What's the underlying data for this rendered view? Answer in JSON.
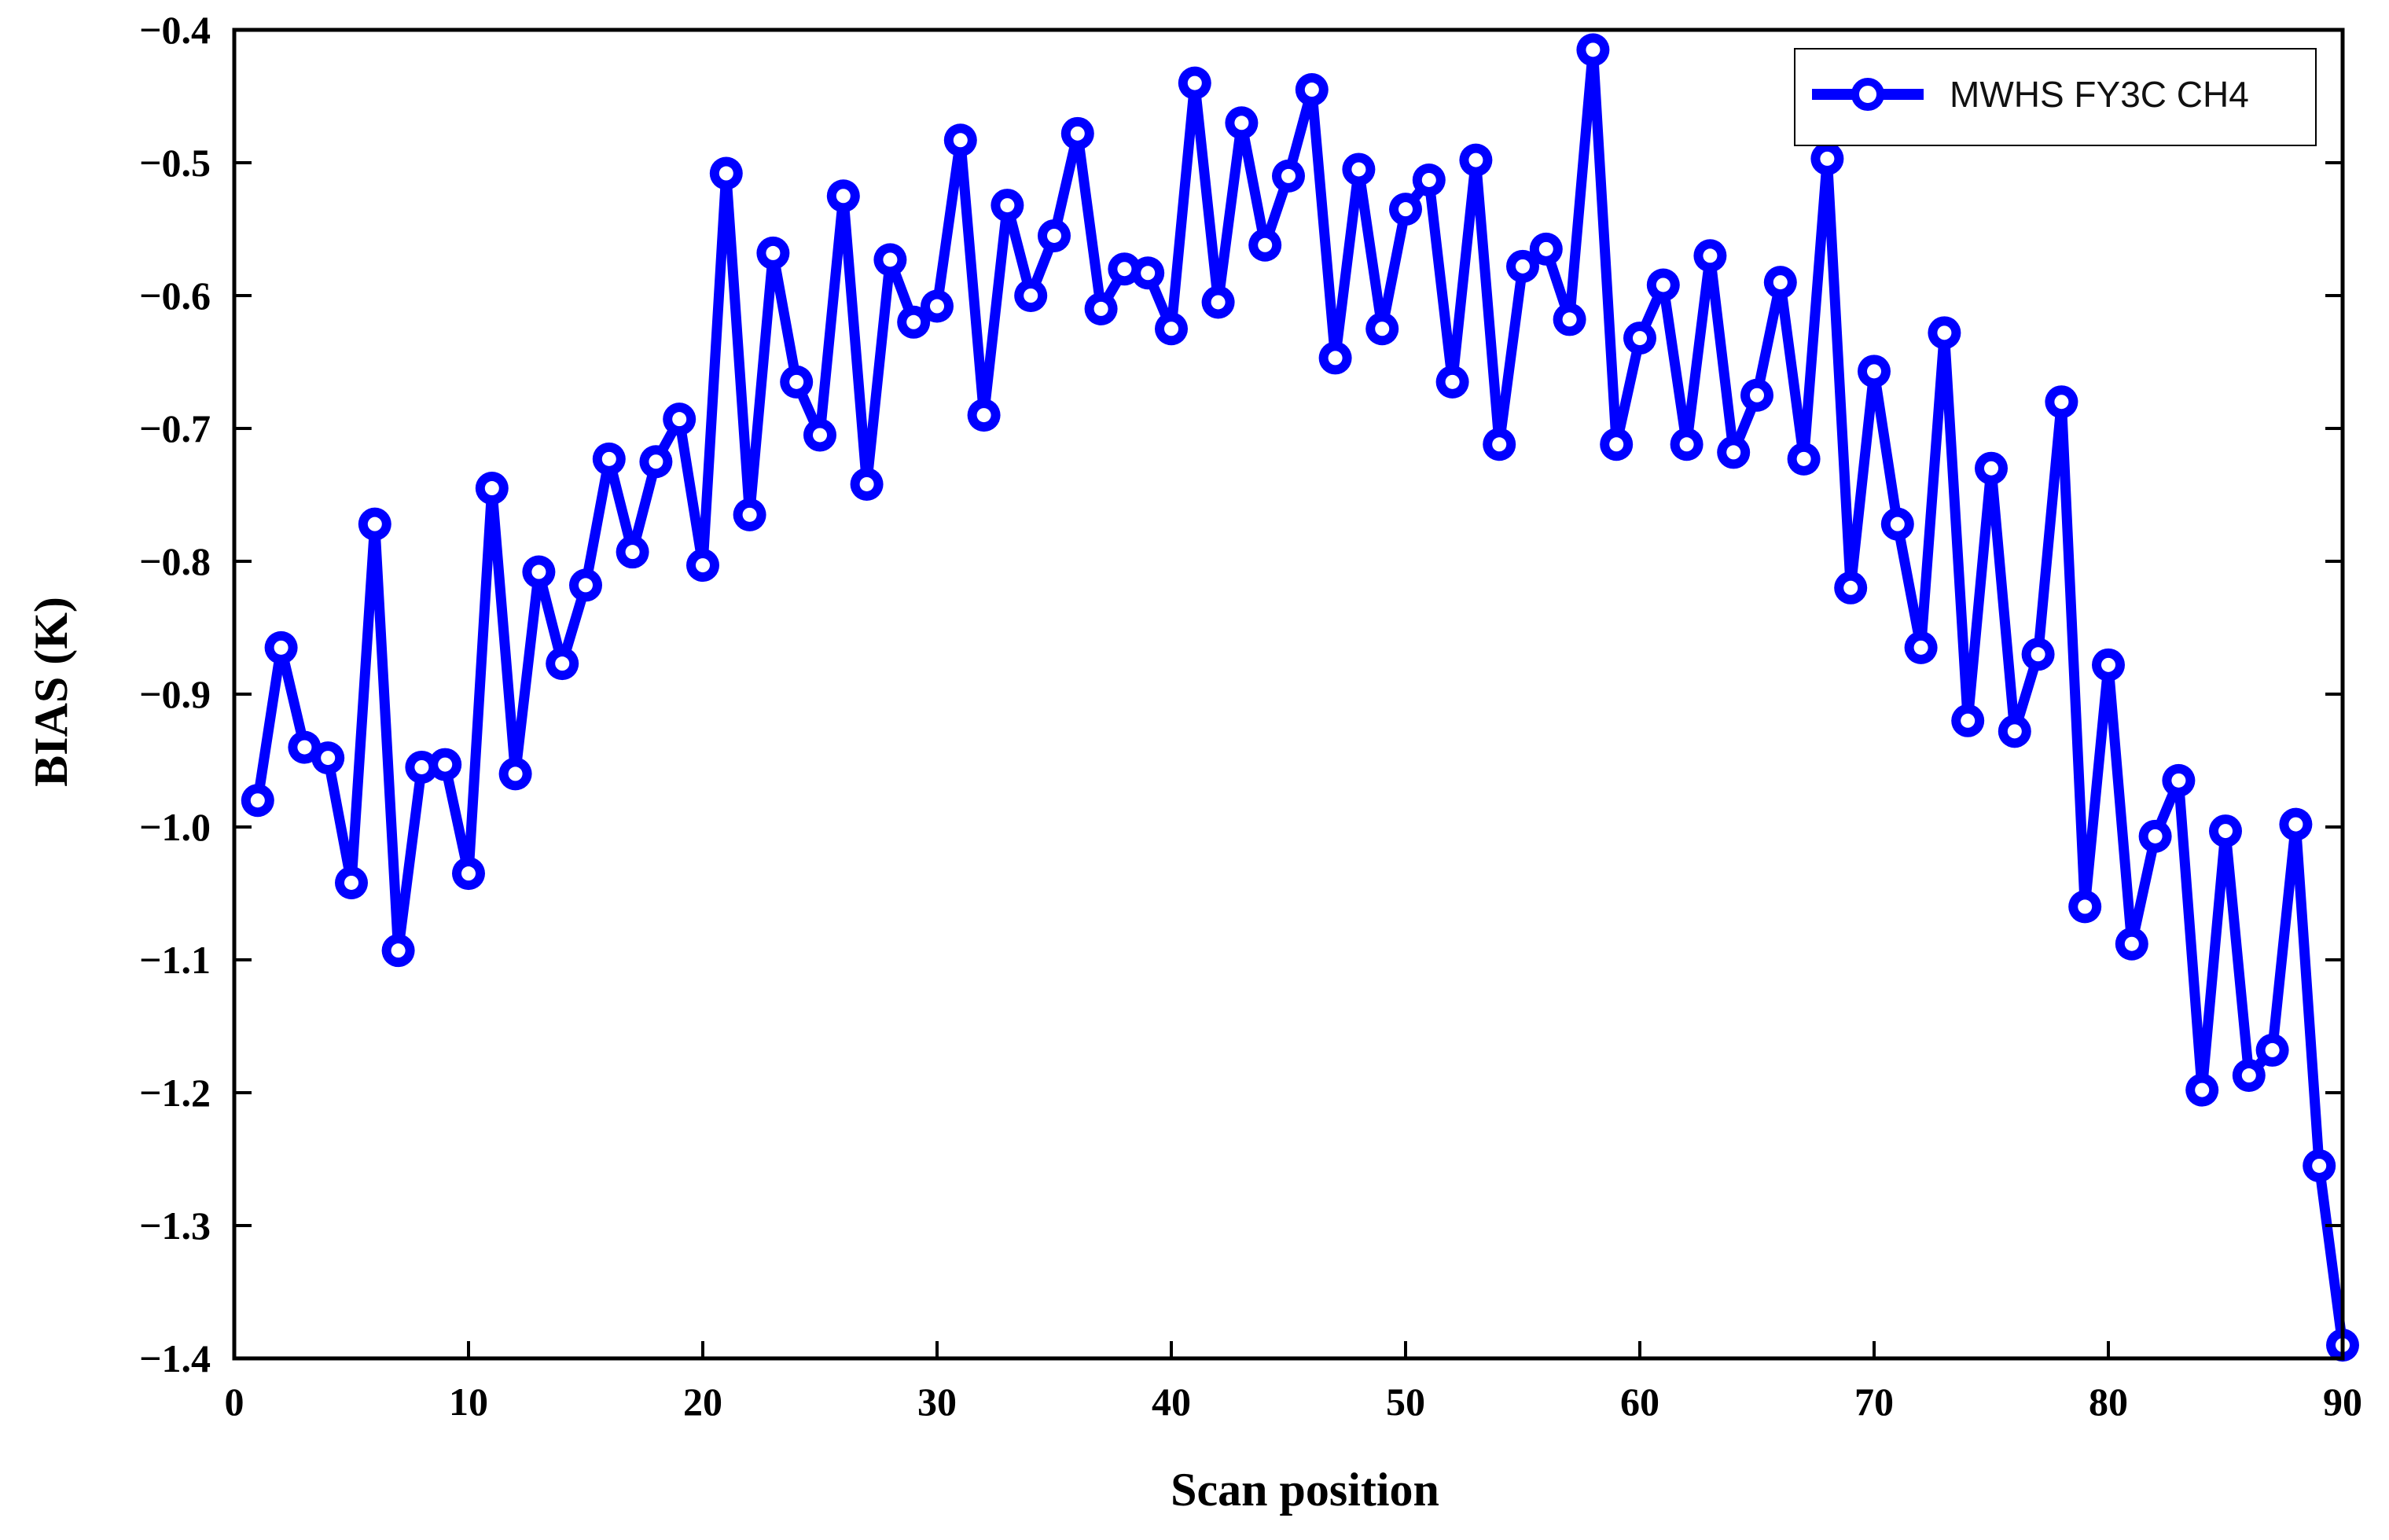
{
  "chart_data": {
    "type": "line",
    "title": "",
    "xlabel": "Scan position",
    "ylabel": "BIAS (K)",
    "xlim": [
      0,
      90
    ],
    "ylim": [
      -1.4,
      -0.4
    ],
    "xticks": [
      0,
      10,
      20,
      30,
      40,
      50,
      60,
      70,
      80,
      90
    ],
    "xtick_labels": [
      "0",
      "10",
      "20",
      "30",
      "40",
      "50",
      "60",
      "70",
      "80",
      "90"
    ],
    "yticks": [
      -0.4,
      -0.5,
      -0.6,
      -0.7,
      -0.8,
      -0.9,
      -1.0,
      -1.1,
      -1.2,
      -1.3,
      -1.4
    ],
    "ytick_labels": [
      "-0.4",
      "-0.5",
      "-0.6",
      "-0.7",
      "-0.8",
      "-0.9",
      "-1.0",
      "-1.1",
      "-1.2",
      "-1.3",
      "-1.4"
    ],
    "grid": false,
    "legend_position": "top-right",
    "colors": {
      "series": "#0000ff",
      "axis": "#000000",
      "background": "#ffffff"
    },
    "series": [
      {
        "name": "MWHS FY3C CH4",
        "x": [
          1,
          2,
          3,
          4,
          5,
          6,
          7,
          8,
          9,
          10,
          11,
          12,
          13,
          14,
          15,
          16,
          17,
          18,
          19,
          20,
          21,
          22,
          23,
          24,
          25,
          26,
          27,
          28,
          29,
          30,
          31,
          32,
          33,
          34,
          35,
          36,
          37,
          38,
          39,
          40,
          41,
          42,
          43,
          44,
          45,
          46,
          47,
          48,
          49,
          50,
          51,
          52,
          53,
          54,
          55,
          56,
          57,
          58,
          59,
          60,
          61,
          62,
          63,
          64,
          65,
          66,
          67,
          68,
          69,
          70,
          71,
          72,
          73,
          74,
          75,
          76,
          77,
          78,
          79,
          80,
          81,
          82,
          83,
          84,
          85,
          86,
          87,
          88,
          89,
          90
        ],
        "values": [
          -0.98,
          -0.865,
          -0.94,
          -0.948,
          -1.042,
          -0.772,
          -1.093,
          -0.955,
          -0.953,
          -1.035,
          -0.745,
          -0.96,
          -0.808,
          -0.877,
          -0.818,
          -0.723,
          -0.793,
          -0.725,
          -0.693,
          -0.803,
          -0.508,
          -0.765,
          -0.568,
          -0.665,
          -0.705,
          -0.525,
          -0.742,
          -0.573,
          -0.62,
          -0.608,
          -0.483,
          -0.69,
          -0.532,
          -0.6,
          -0.555,
          -0.478,
          -0.61,
          -0.58,
          -0.583,
          -0.625,
          -0.44,
          -0.605,
          -0.47,
          -0.562,
          -0.51,
          -0.445,
          -0.647,
          -0.505,
          -0.625,
          -0.535,
          -0.513,
          -0.665,
          -0.498,
          -0.712,
          -0.578,
          -0.565,
          -0.618,
          -0.415,
          -0.712,
          -0.632,
          -0.592,
          -0.712,
          -0.57,
          -0.718,
          -0.675,
          -0.59,
          -0.723,
          -0.497,
          -0.82,
          -0.657,
          -0.772,
          -0.865,
          -0.628,
          -0.92,
          -0.73,
          -0.928,
          -0.87,
          -0.68,
          -1.06,
          -0.878,
          -1.088,
          -1.007,
          -0.965,
          -1.198,
          -1.003,
          -1.187,
          -1.168,
          -0.998,
          -1.255,
          -1.39
        ]
      }
    ]
  }
}
